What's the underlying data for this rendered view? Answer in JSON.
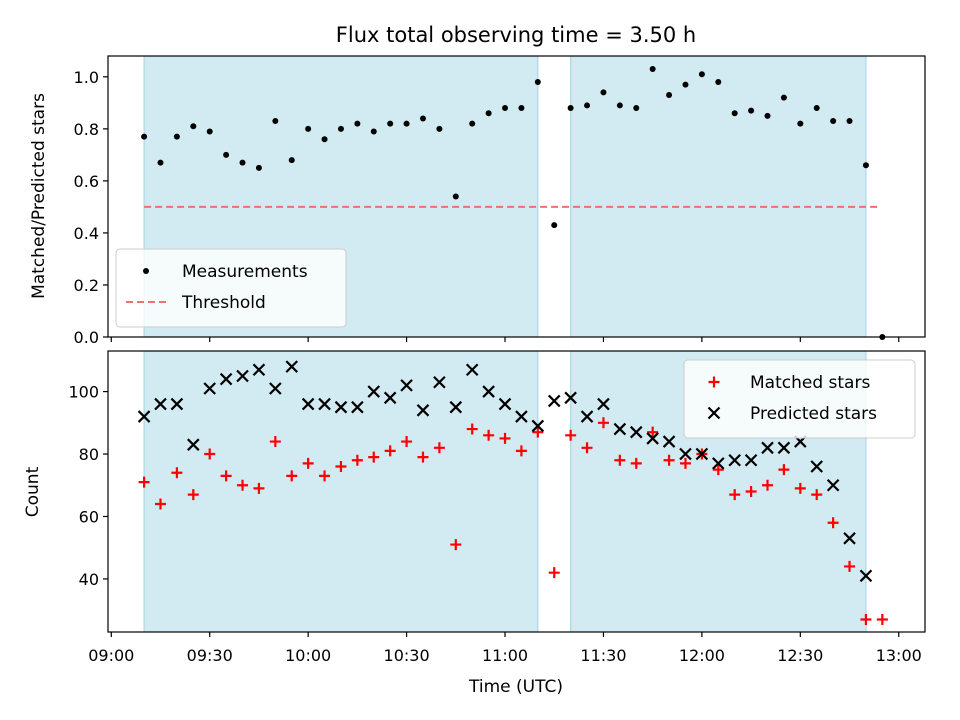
{
  "chart_data": {
    "type": "scatter",
    "title": "Flux total observing time = 3.50 h",
    "xlabel": "Time (UTC)",
    "x_ticks": [
      "09:00",
      "09:30",
      "10:00",
      "10:30",
      "11:00",
      "11:30",
      "12:00",
      "12:30",
      "13:00"
    ],
    "observing_windows": [
      [
        "09:10",
        "11:10"
      ],
      [
        "11:20",
        "12:50"
      ]
    ],
    "colors": {
      "window": "#add8e6",
      "measurements": "#000000",
      "threshold": "#f07070",
      "matched": "#ff0000",
      "predicted": "#000000"
    },
    "panels": [
      {
        "ylabel": "Matched/Predicted stars",
        "ylim": [
          0,
          1.08
        ],
        "yticks": [
          0.0,
          0.2,
          0.4,
          0.6,
          0.8,
          1.0
        ],
        "legend_position": "lower-left",
        "threshold": {
          "name": "Threshold",
          "value": 0.5,
          "x_range": [
            "09:10",
            "12:54"
          ]
        },
        "series": [
          {
            "name": "Measurements",
            "marker": "dot",
            "points": [
              [
                "09:10",
                0.77
              ],
              [
                "09:15",
                0.67
              ],
              [
                "09:20",
                0.77
              ],
              [
                "09:25",
                0.81
              ],
              [
                "09:30",
                0.79
              ],
              [
                "09:35",
                0.7
              ],
              [
                "09:40",
                0.67
              ],
              [
                "09:45",
                0.65
              ],
              [
                "09:50",
                0.83
              ],
              [
                "09:55",
                0.68
              ],
              [
                "10:00",
                0.8
              ],
              [
                "10:05",
                0.76
              ],
              [
                "10:10",
                0.8
              ],
              [
                "10:15",
                0.82
              ],
              [
                "10:20",
                0.79
              ],
              [
                "10:25",
                0.82
              ],
              [
                "10:30",
                0.82
              ],
              [
                "10:35",
                0.84
              ],
              [
                "10:40",
                0.8
              ],
              [
                "10:45",
                0.54
              ],
              [
                "10:50",
                0.82
              ],
              [
                "10:55",
                0.86
              ],
              [
                "11:00",
                0.88
              ],
              [
                "11:05",
                0.88
              ],
              [
                "11:10",
                0.98
              ],
              [
                "11:15",
                0.43
              ],
              [
                "11:20",
                0.88
              ],
              [
                "11:25",
                0.89
              ],
              [
                "11:30",
                0.94
              ],
              [
                "11:35",
                0.89
              ],
              [
                "11:40",
                0.88
              ],
              [
                "11:45",
                1.03
              ],
              [
                "11:50",
                0.93
              ],
              [
                "11:55",
                0.97
              ],
              [
                "12:00",
                1.01
              ],
              [
                "12:05",
                0.98
              ],
              [
                "12:10",
                0.86
              ],
              [
                "12:15",
                0.87
              ],
              [
                "12:20",
                0.85
              ],
              [
                "12:25",
                0.92
              ],
              [
                "12:30",
                0.82
              ],
              [
                "12:35",
                0.88
              ],
              [
                "12:40",
                0.83
              ],
              [
                "12:45",
                0.83
              ],
              [
                "12:50",
                0.66
              ],
              [
                "12:55",
                0.0
              ]
            ]
          }
        ]
      },
      {
        "ylabel": "Count",
        "ylim": [
          23,
          113
        ],
        "yticks": [
          40,
          60,
          80,
          100
        ],
        "legend_position": "upper-right",
        "series": [
          {
            "name": "Matched stars",
            "marker": "plus",
            "points": [
              [
                "09:10",
                71
              ],
              [
                "09:15",
                64
              ],
              [
                "09:20",
                74
              ],
              [
                "09:25",
                67
              ],
              [
                "09:30",
                80
              ],
              [
                "09:35",
                73
              ],
              [
                "09:40",
                70
              ],
              [
                "09:45",
                69
              ],
              [
                "09:50",
                84
              ],
              [
                "09:55",
                73
              ],
              [
                "10:00",
                77
              ],
              [
                "10:05",
                73
              ],
              [
                "10:10",
                76
              ],
              [
                "10:15",
                78
              ],
              [
                "10:20",
                79
              ],
              [
                "10:25",
                81
              ],
              [
                "10:30",
                84
              ],
              [
                "10:35",
                79
              ],
              [
                "10:40",
                82
              ],
              [
                "10:45",
                51
              ],
              [
                "10:50",
                88
              ],
              [
                "10:55",
                86
              ],
              [
                "11:00",
                85
              ],
              [
                "11:05",
                81
              ],
              [
                "11:10",
                87
              ],
              [
                "11:15",
                42
              ],
              [
                "11:20",
                86
              ],
              [
                "11:25",
                82
              ],
              [
                "11:30",
                90
              ],
              [
                "11:35",
                78
              ],
              [
                "11:40",
                77
              ],
              [
                "11:45",
                87
              ],
              [
                "11:50",
                78
              ],
              [
                "11:55",
                77
              ],
              [
                "12:00",
                80
              ],
              [
                "12:05",
                75
              ],
              [
                "12:10",
                67
              ],
              [
                "12:15",
                68
              ],
              [
                "12:20",
                70
              ],
              [
                "12:25",
                75
              ],
              [
                "12:30",
                69
              ],
              [
                "12:35",
                67
              ],
              [
                "12:40",
                58
              ],
              [
                "12:45",
                44
              ],
              [
                "12:50",
                27
              ],
              [
                "12:55",
                27
              ]
            ]
          },
          {
            "name": "Predicted stars",
            "marker": "x",
            "points": [
              [
                "09:10",
                92
              ],
              [
                "09:15",
                96
              ],
              [
                "09:20",
                96
              ],
              [
                "09:25",
                83
              ],
              [
                "09:30",
                101
              ],
              [
                "09:35",
                104
              ],
              [
                "09:40",
                105
              ],
              [
                "09:45",
                107
              ],
              [
                "09:50",
                101
              ],
              [
                "09:55",
                108
              ],
              [
                "10:00",
                96
              ],
              [
                "10:05",
                96
              ],
              [
                "10:10",
                95
              ],
              [
                "10:15",
                95
              ],
              [
                "10:20",
                100
              ],
              [
                "10:25",
                98
              ],
              [
                "10:30",
                102
              ],
              [
                "10:35",
                94
              ],
              [
                "10:40",
                103
              ],
              [
                "10:45",
                95
              ],
              [
                "10:50",
                107
              ],
              [
                "10:55",
                100
              ],
              [
                "11:00",
                96
              ],
              [
                "11:05",
                92
              ],
              [
                "11:10",
                89
              ],
              [
                "11:15",
                97
              ],
              [
                "11:20",
                98
              ],
              [
                "11:25",
                92
              ],
              [
                "11:30",
                96
              ],
              [
                "11:35",
                88
              ],
              [
                "11:40",
                87
              ],
              [
                "11:45",
                85
              ],
              [
                "11:50",
                84
              ],
              [
                "11:55",
                80
              ],
              [
                "12:00",
                80
              ],
              [
                "12:05",
                77
              ],
              [
                "12:10",
                78
              ],
              [
                "12:15",
                78
              ],
              [
                "12:20",
                82
              ],
              [
                "12:25",
                82
              ],
              [
                "12:30",
                84
              ],
              [
                "12:35",
                76
              ],
              [
                "12:40",
                70
              ],
              [
                "12:45",
                53
              ],
              [
                "12:50",
                41
              ]
            ]
          }
        ]
      }
    ]
  }
}
